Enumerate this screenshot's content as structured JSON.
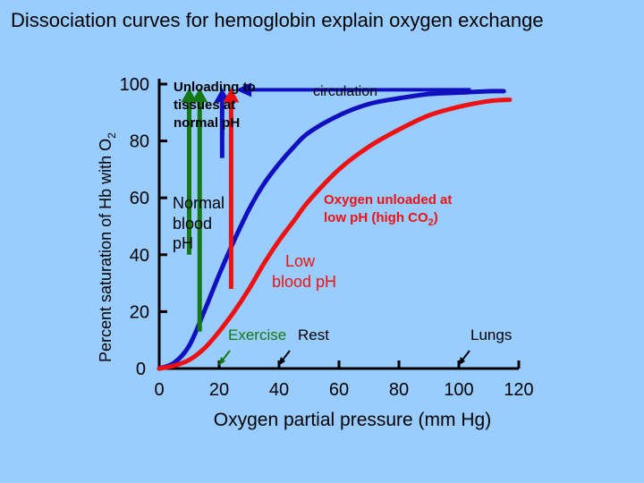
{
  "slide_title": "Dissociation curves for hemoglobin explain oxygen exchange",
  "colors": {
    "background": "#99CCFF",
    "normal_curve": "#1010C0",
    "low_ph_curve": "#EE1111",
    "unloading_arrow": "#147814",
    "circulation_arrow": "#1010C0",
    "low_ph_arrow": "#EE1111",
    "oxygen_unloaded_text": "#EE1111",
    "exercise_text": "#147814"
  },
  "chart_data": {
    "type": "line",
    "title": "",
    "xlabel": "Oxygen partial pressure (mm Hg)",
    "ylabel": "Percent saturation of Hb with O",
    "ylabel_subscript": "2",
    "xlim": [
      0,
      120
    ],
    "ylim": [
      0,
      100
    ],
    "x_ticks": [
      0,
      20,
      40,
      60,
      80,
      100,
      120
    ],
    "y_ticks": [
      0,
      20,
      40,
      60,
      80,
      100
    ],
    "grid": false,
    "series": [
      {
        "key": "normal",
        "x": [
          0,
          5,
          10,
          15,
          20,
          25,
          30,
          35,
          40,
          45,
          50,
          60,
          70,
          80,
          90,
          100,
          110,
          115
        ],
        "y": [
          0,
          2,
          8,
          20,
          33,
          45,
          56,
          65,
          72,
          78,
          83,
          89,
          93,
          95,
          96.5,
          97,
          97.5,
          97.5
        ]
      },
      {
        "key": "low_ph",
        "x": [
          0,
          5,
          10,
          15,
          20,
          25,
          30,
          35,
          40,
          45,
          50,
          60,
          70,
          80,
          90,
          100,
          110,
          117
        ],
        "y": [
          0,
          1,
          3,
          7,
          13,
          20,
          28,
          37,
          45,
          52,
          59,
          70,
          78,
          84,
          89,
          92,
          94,
          94.5
        ]
      }
    ],
    "annotations": {
      "unloading": [
        "Unloading to",
        "tissues at",
        "normal pH"
      ],
      "circulation": "circulation",
      "normal_blood": [
        "Normal",
        "blood",
        "pH"
      ],
      "oxygen_unloaded": [
        "Oxygen unloaded at",
        "low pH (high CO",
        "2",
        ")"
      ],
      "low_blood": [
        "Low",
        "blood pH"
      ],
      "exercise": "Exercise",
      "rest": "Rest",
      "lungs": "Lungs"
    },
    "arrows": {
      "unloading_green": [
        {
          "x": 10,
          "y_from": 40,
          "y_to": 98
        },
        {
          "x": 13.5,
          "y_from": 13,
          "y_to": 98
        }
      ],
      "circulation_top": {
        "x_from": 104,
        "x_to": 26,
        "y": 98
      },
      "circulation_vertical": {
        "x": 21,
        "y_from": 74,
        "y_to": 98
      },
      "low_ph_red": {
        "x": 24,
        "y_from": 28,
        "y_to": 98
      },
      "pointers": [
        {
          "key": "exercise",
          "x": 20
        },
        {
          "key": "rest",
          "x": 40
        },
        {
          "key": "lungs",
          "x": 100
        }
      ]
    }
  }
}
